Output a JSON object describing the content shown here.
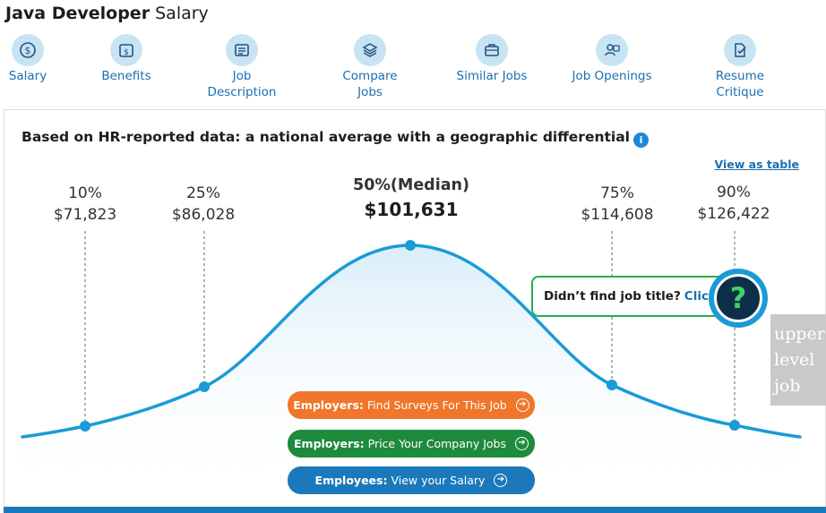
{
  "title": {
    "bold": "Java Developer",
    "rest": " Salary"
  },
  "nav": [
    {
      "label": "Salary",
      "icon": "dollar-icon"
    },
    {
      "label": "Benefits",
      "icon": "wallet-icon"
    },
    {
      "label": "Job\nDescription",
      "icon": "document-icon"
    },
    {
      "label": "Compare\nJobs",
      "icon": "layers-icon"
    },
    {
      "label": "Similar Jobs",
      "icon": "briefcase-icon"
    },
    {
      "label": "Job Openings",
      "icon": "people-icon"
    },
    {
      "label": "Resume\nCritique",
      "icon": "resume-check-icon"
    }
  ],
  "chart": {
    "heading": "Based on HR-reported data: a national average with a geographic differential",
    "info_icon": "i",
    "view_as_table": "View as table",
    "percentiles": [
      {
        "label": "10%",
        "value": "$71,823"
      },
      {
        "label": "25%",
        "value": "$86,028"
      },
      {
        "label": "50%(Median)",
        "value": "$101,631"
      },
      {
        "label": "75%",
        "value": "$114,608"
      },
      {
        "label": "90%",
        "value": "$126,422"
      }
    ]
  },
  "cta": {
    "employers_surveys": {
      "bold": "Employers:",
      "text": "Find Surveys For This Job"
    },
    "employers_price": {
      "bold": "Employers:",
      "text": "Price Your Company Jobs"
    },
    "employees_salary": {
      "bold": "Employees:",
      "text": "View your Salary"
    }
  },
  "callout": {
    "text": "Didn’t find job title?",
    "link": "Click",
    "button_glyph": "?"
  },
  "side_tag": "upper\nlevel\njob",
  "colors": {
    "accent": "#1c6fb0",
    "curve": "#1a9bd6",
    "orange": "#f0762b",
    "green": "#1e8a3c",
    "blue": "#1b79bb",
    "callout_border": "#27ae45"
  }
}
